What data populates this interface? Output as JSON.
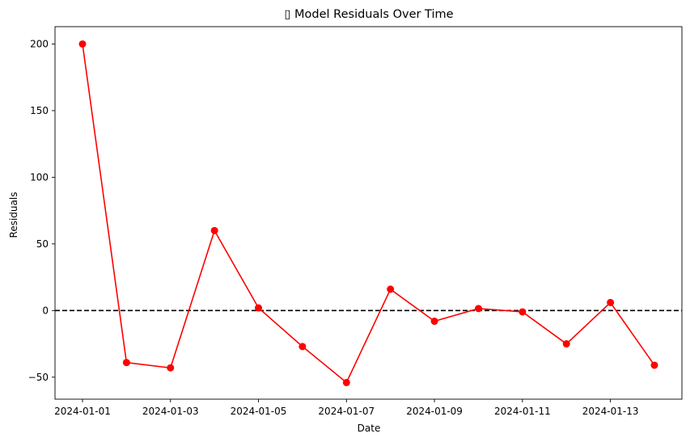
{
  "chart_data": {
    "type": "line",
    "title": "▯ Model Residuals Over Time",
    "xlabel": "Date",
    "ylabel": "Residuals",
    "x": [
      "2024-01-01",
      "2024-01-02",
      "2024-01-03",
      "2024-01-04",
      "2024-01-05",
      "2024-01-06",
      "2024-01-07",
      "2024-01-08",
      "2024-01-09",
      "2024-01-10",
      "2024-01-11",
      "2024-01-12",
      "2024-01-13",
      "2024-01-14"
    ],
    "series": [
      {
        "color": "#ff0000",
        "marker": "circle",
        "values": [
          200,
          -39,
          -43,
          60,
          2,
          -27,
          -54,
          16,
          -8,
          1.5,
          -1,
          -25,
          6,
          -41
        ]
      }
    ],
    "reference_line": {
      "y": 0,
      "style": "dashed",
      "color": "#000000"
    },
    "xlim": [
      "2023-12-31T09:00",
      "2024-01-14T15:00"
    ],
    "ylim": [
      -66.5,
      213
    ],
    "x_ticks": [
      "2024-01-01",
      "2024-01-03",
      "2024-01-05",
      "2024-01-07",
      "2024-01-09",
      "2024-01-11",
      "2024-01-13"
    ],
    "y_ticks": [
      -50,
      0,
      50,
      100,
      150,
      200
    ],
    "grid": false
  }
}
